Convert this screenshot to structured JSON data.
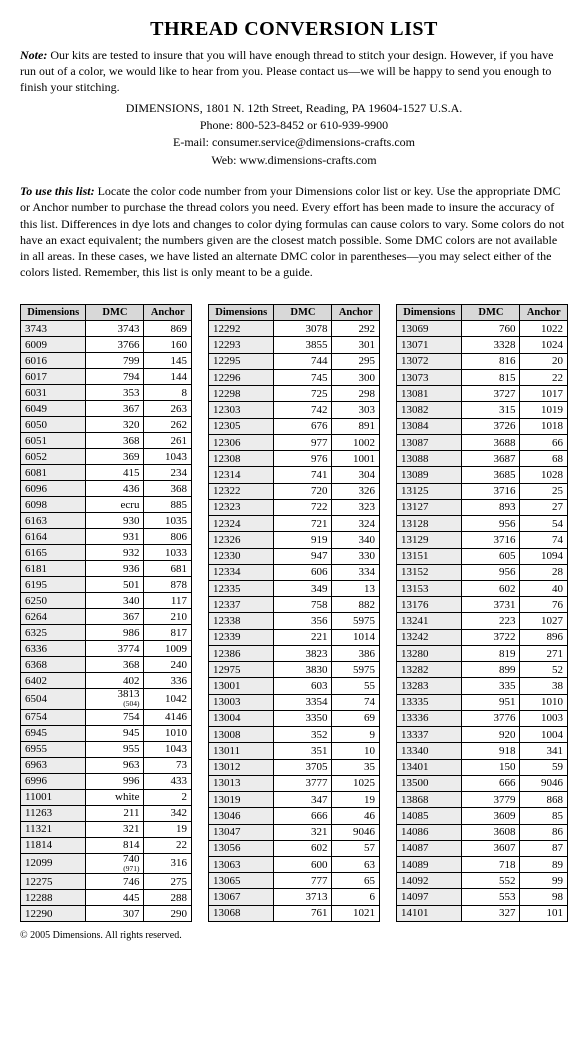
{
  "title": "THREAD CONVERSION LIST",
  "note_label": "Note:",
  "note_text": " Our kits are tested to insure that you will have enough thread to stitch your design. However, if you have run out of a color, we would like to hear from you. Please contact us—we will be happy to send you enough to finish your stitching.",
  "contact": {
    "addr": "DIMENSIONS, 1801 N. 12th Street, Reading, PA 19604-1527 U.S.A.",
    "phone": "Phone: 800-523-8452 or 610-939-9900",
    "email": "E-mail: consumer.service@dimensions-crafts.com",
    "web": "Web: www.dimensions-crafts.com"
  },
  "instr_label": "To use this list:",
  "instr_text": " Locate the color code number from your Dimensions color list or key. Use the appropriate DMC or Anchor number to purchase the thread colors you need. Every effort has been made to insure the accuracy of this list. Differences in dye lots and changes to color dying formulas can cause colors to vary. Some colors do not have an exact equivalent; the numbers given are the closest match possible. Some DMC colors are not available in all areas. In these cases, we have listed an alternate DMC color in parentheses—you may select either of the colors listed. Remember, this list is only meant to be a guide.",
  "headers": [
    "Dimensions",
    "DMC",
    "Anchor"
  ],
  "footer": "© 2005 Dimensions. All rights reserved.",
  "table1": [
    [
      "3743",
      "3743",
      "869"
    ],
    [
      "6009",
      "3766",
      "160"
    ],
    [
      "6016",
      "799",
      "145"
    ],
    [
      "6017",
      "794",
      "144"
    ],
    [
      "6031",
      "353",
      "8"
    ],
    [
      "6049",
      "367",
      "263"
    ],
    [
      "6050",
      "320",
      "262"
    ],
    [
      "6051",
      "368",
      "261"
    ],
    [
      "6052",
      "369",
      "1043"
    ],
    [
      "6081",
      "415",
      "234"
    ],
    [
      "6096",
      "436",
      "368"
    ],
    [
      "6098",
      "ecru",
      "885"
    ],
    [
      "6163",
      "930",
      "1035"
    ],
    [
      "6164",
      "931",
      "806"
    ],
    [
      "6165",
      "932",
      "1033"
    ],
    [
      "6181",
      "936",
      "681"
    ],
    [
      "6195",
      "501",
      "878"
    ],
    [
      "6250",
      "340",
      "117"
    ],
    [
      "6264",
      "367",
      "210"
    ],
    [
      "6325",
      "986",
      "817"
    ],
    [
      "6336",
      "3774",
      "1009"
    ],
    [
      "6368",
      "368",
      "240"
    ],
    [
      "6402",
      "402",
      "336"
    ],
    [
      "6504",
      {
        "main": "3813",
        "sub": "(504)"
      },
      "1042"
    ],
    [
      "6754",
      "754",
      "4146"
    ],
    [
      "6945",
      "945",
      "1010"
    ],
    [
      "6955",
      "955",
      "1043"
    ],
    [
      "6963",
      "963",
      "73"
    ],
    [
      "6996",
      "996",
      "433"
    ],
    [
      "11001",
      "white",
      "2"
    ],
    [
      "11263",
      "211",
      "342"
    ],
    [
      "11321",
      "321",
      "19"
    ],
    [
      "11814",
      "814",
      "22"
    ],
    [
      "12099",
      {
        "main": "740",
        "sub": "(971)"
      },
      "316"
    ],
    [
      "12275",
      "746",
      "275"
    ],
    [
      "12288",
      "445",
      "288"
    ],
    [
      "12290",
      "307",
      "290"
    ]
  ],
  "table2": [
    [
      "12292",
      "3078",
      "292"
    ],
    [
      "12293",
      "3855",
      "301"
    ],
    [
      "12295",
      "744",
      "295"
    ],
    [
      "12296",
      "745",
      "300"
    ],
    [
      "12298",
      "725",
      "298"
    ],
    [
      "12303",
      "742",
      "303"
    ],
    [
      "12305",
      "676",
      "891"
    ],
    [
      "12306",
      "977",
      "1002"
    ],
    [
      "12308",
      "976",
      "1001"
    ],
    [
      "12314",
      "741",
      "304"
    ],
    [
      "12322",
      "720",
      "326"
    ],
    [
      "12323",
      "722",
      "323"
    ],
    [
      "12324",
      "721",
      "324"
    ],
    [
      "12326",
      "919",
      "340"
    ],
    [
      "12330",
      "947",
      "330"
    ],
    [
      "12334",
      "606",
      "334"
    ],
    [
      "12335",
      "349",
      "13"
    ],
    [
      "12337",
      "758",
      "882"
    ],
    [
      "12338",
      "356",
      "5975"
    ],
    [
      "12339",
      "221",
      "1014"
    ],
    [
      "12386",
      "3823",
      "386"
    ],
    [
      "12975",
      "3830",
      "5975"
    ],
    [
      "13001",
      "603",
      "55"
    ],
    [
      "13003",
      "3354",
      "74"
    ],
    [
      "13004",
      "3350",
      "69"
    ],
    [
      "13008",
      "352",
      "9"
    ],
    [
      "13011",
      "351",
      "10"
    ],
    [
      "13012",
      "3705",
      "35"
    ],
    [
      "13013",
      "3777",
      "1025"
    ],
    [
      "13019",
      "347",
      "19"
    ],
    [
      "13046",
      "666",
      "46"
    ],
    [
      "13047",
      "321",
      "9046"
    ],
    [
      "13056",
      "602",
      "57"
    ],
    [
      "13063",
      "600",
      "63"
    ],
    [
      "13065",
      "777",
      "65"
    ],
    [
      "13067",
      "3713",
      "6"
    ],
    [
      "13068",
      "761",
      "1021"
    ]
  ],
  "table3": [
    [
      "13069",
      "760",
      "1022"
    ],
    [
      "13071",
      "3328",
      "1024"
    ],
    [
      "13072",
      "816",
      "20"
    ],
    [
      "13073",
      "815",
      "22"
    ],
    [
      "13081",
      "3727",
      "1017"
    ],
    [
      "13082",
      "315",
      "1019"
    ],
    [
      "13084",
      "3726",
      "1018"
    ],
    [
      "13087",
      "3688",
      "66"
    ],
    [
      "13088",
      "3687",
      "68"
    ],
    [
      "13089",
      "3685",
      "1028"
    ],
    [
      "13125",
      "3716",
      "25"
    ],
    [
      "13127",
      "893",
      "27"
    ],
    [
      "13128",
      "956",
      "54"
    ],
    [
      "13129",
      "3716",
      "74"
    ],
    [
      "13151",
      "605",
      "1094"
    ],
    [
      "13152",
      "956",
      "28"
    ],
    [
      "13153",
      "602",
      "40"
    ],
    [
      "13176",
      "3731",
      "76"
    ],
    [
      "13241",
      "223",
      "1027"
    ],
    [
      "13242",
      "3722",
      "896"
    ],
    [
      "13280",
      "819",
      "271"
    ],
    [
      "13282",
      "899",
      "52"
    ],
    [
      "13283",
      "335",
      "38"
    ],
    [
      "13335",
      "951",
      "1010"
    ],
    [
      "13336",
      "3776",
      "1003"
    ],
    [
      "13337",
      "920",
      "1004"
    ],
    [
      "13340",
      "918",
      "341"
    ],
    [
      "13401",
      "150",
      "59"
    ],
    [
      "13500",
      "666",
      "9046"
    ],
    [
      "13868",
      "3779",
      "868"
    ],
    [
      "14085",
      "3609",
      "85"
    ],
    [
      "14086",
      "3608",
      "86"
    ],
    [
      "14087",
      "3607",
      "87"
    ],
    [
      "14089",
      "718",
      "89"
    ],
    [
      "14092",
      "552",
      "99"
    ],
    [
      "14097",
      "553",
      "98"
    ],
    [
      "14101",
      "327",
      "101"
    ]
  ]
}
